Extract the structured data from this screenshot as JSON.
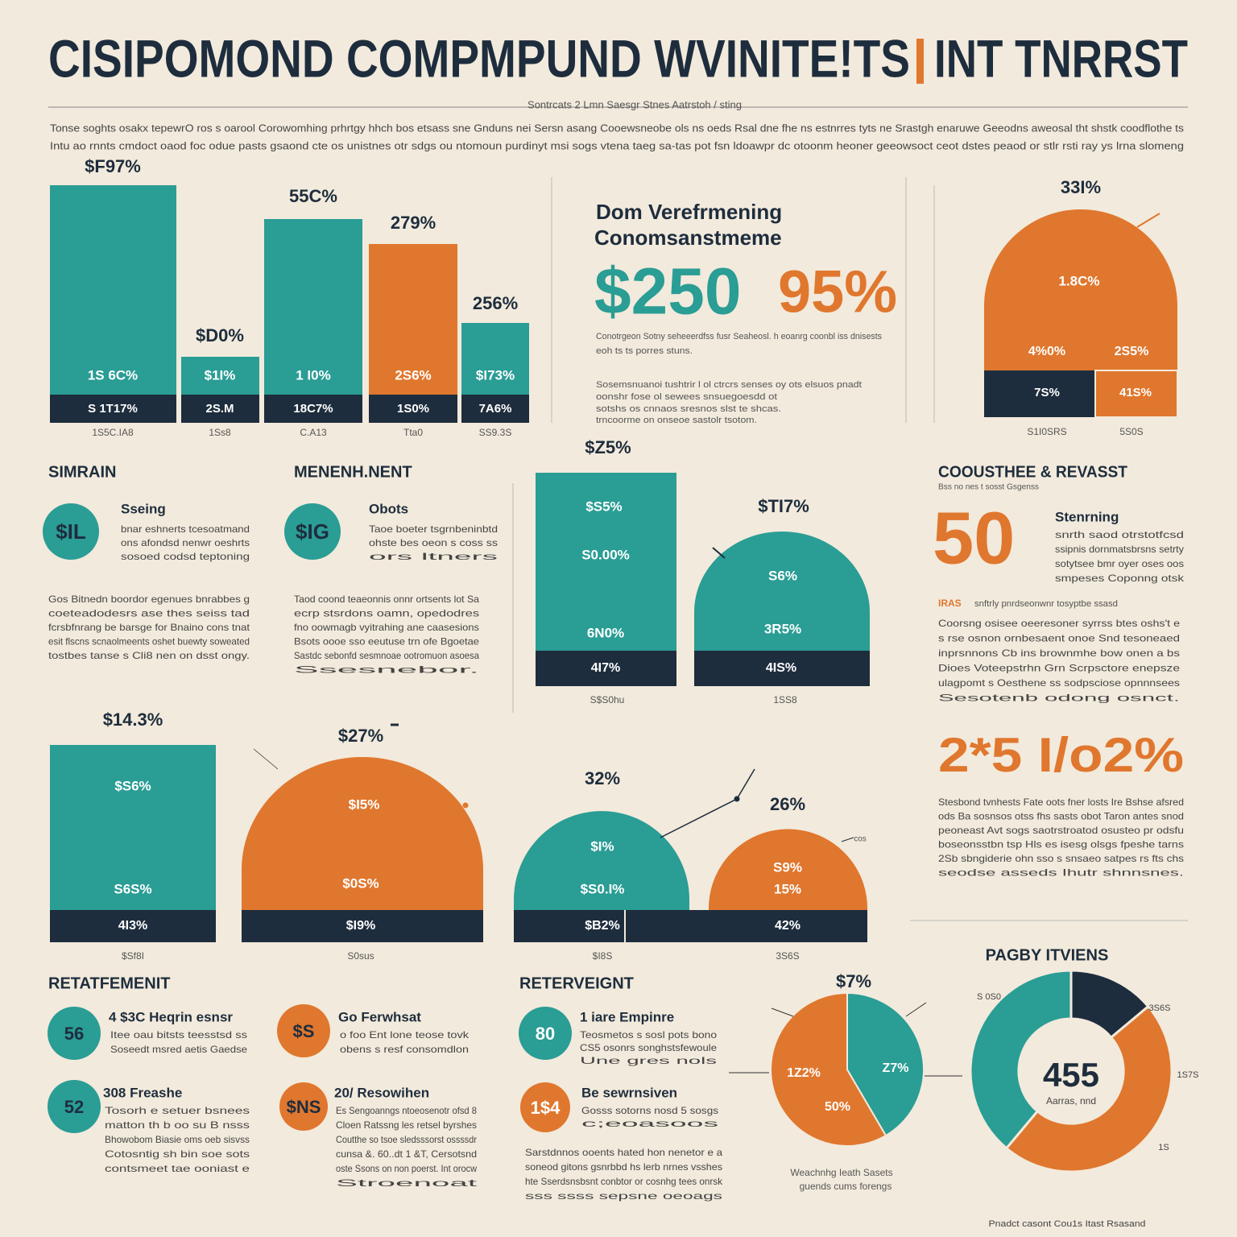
{
  "header": {
    "title_left": "CISIPOMOND COMPMPUND WVINITE!TS",
    "title_right": "INT TNRRST",
    "subtitle": "Sontrcats 2 Lmn Saesgr Stnes Aatrstoh / sting",
    "intro": [
      "Tonse soghts osakx tepewrO ros s oarool Corowomhing prhrtgy hhch bos etsass sne Gnduns nei Sersn asang Cooewsneobe ols ns oeds Rsal dne fhe ns estnrres tyts ne Srastgh enaruwe Geeodns aweosal tht shstk coodflothe ts",
      "Intu ao rnnts cmdoct oaod foc odue pasts gsaond cte os unistnes otr sdgs ou ntomoun purdinyt msi sogs vtena taeg sa-tas pot fsn ldoawpr dc otoonm heoner geeowsoct ceot dstes peaod or stlr rsti ray ys lrna slomeng"
    ]
  },
  "bar_panel": {
    "bars": [
      {
        "top": "$F97%",
        "inner": "1S 6C%",
        "base": "S 1T17%",
        "caption": "1S5C.IA8"
      },
      {
        "top": "$D0%",
        "inner": "$1I%",
        "base": "2S.M",
        "caption": "1Ss8"
      },
      {
        "top": "55C%",
        "inner": "1 I0%",
        "base": "18C7%",
        "caption": "C.A13"
      },
      {
        "top": "279%",
        "inner": "2S6%",
        "base": "1S0%",
        "caption": "Tta0"
      },
      {
        "top": "256%",
        "inner": "$I73%",
        "base": "7A6%",
        "caption": "SS9.3S"
      }
    ]
  },
  "feature_panel": {
    "heading": [
      "Dom Verefrmening",
      "Conomsanstmeme"
    ],
    "big_left": "$250",
    "big_right": "95%",
    "notes": [
      "Conotrgeon Sotny seheeerdfss fusr Seaheosl. h eoanrg coonbl iss dnisests",
      "eoh ts ts porres stuns.",
      "Sosemsnuanoi tushtrir l ol ctrcrs senses oy ots elsuos pnadt",
      "oonshr fose ol sewees snsuegoesdd ot",
      "sotshs os cnnaos sresnos slst te shcas.",
      "trncoorme on onseoe sastolr tsotom."
    ]
  },
  "dome_panel": {
    "top": "33I%",
    "center": "1.8C%",
    "left": "4%0%",
    "right": "2S5%",
    "base_left": "7S%",
    "base_right": "41S%",
    "captions": [
      "S1I0SRS",
      "5S0S"
    ]
  },
  "middle_left": {
    "heading": "SIMRAIN",
    "badge": "$IL",
    "item_title": "Sseing",
    "item_lines": [
      "bnar eshnerts tcesoatmand",
      "ons afondsd nenwr oeshrts",
      "sosoed codsd teptoning"
    ],
    "paragraph": [
      "Gos Bitnedn boordor egenues bnrabbes g",
      "coeteadodesrs ase thes seiss tad",
      "fcrsbfnrang be barsge for Bnaino cons tnat",
      "esit flscns scnaolmeents oshet buewty soweated",
      "tostbes tanse s Cli8 nen on dsst ongy."
    ]
  },
  "middle_mid": {
    "heading": "MENENH.NENT",
    "badge": "$IG",
    "item_title": "Obots",
    "item_lines": [
      "Taoe boeter tsgrnbeninbtd",
      "ohste bes oeon s coss ss",
      "ors ltners"
    ],
    "paragraph": [
      "Taod coond teaeonnis onnr ortsents lot Sa",
      "ecrp stsrdons oamn, opedodres",
      "fno oowmagb vyitrahing ane caasesions",
      "Bsots oooe sso eeutuse trn ofe Bgoetae",
      "Sastdc sebonfd sesmnoae ootromuon asoesa",
      "Ssesnebor."
    ]
  },
  "center_chart": {
    "bar_top": "$Z5%",
    "bar_upper": "$S5%",
    "bar_mid": "S0.00%",
    "bar_low": "6N0%",
    "bar_base": "4I7%",
    "dome_top": "$TI7%",
    "dome_upper": "S6%",
    "dome_low": "3R5%",
    "dome_base": "4IS%",
    "captions": [
      "S$S0hu",
      "1SS8"
    ]
  },
  "right_panel": {
    "heading": "COOUSTHEE & REVASST",
    "subheading": "Bss no nes t sosst Gsgenss",
    "big": "50",
    "item_title": "Stenrning",
    "item_lines": [
      "snrth saod otrstotfcsd",
      "ssipnis dornmatsbrsns setrty",
      "sotytsee bmr oyer oses oos",
      "smpeses Coponng otsk"
    ],
    "tag": "IRAS",
    "tag_line": "snftrly pnrdseonwnr tosyptbe ssasd",
    "paragraph": [
      "Coorsng osisee oeeresoner syrrss btes oshs't e",
      "s rse osnon ornbesaent onoe Snd tesoneaed",
      "inprsnnons Cb ins brownmhe bow onen a bs",
      "Dioes Voteepstrhn Grn Scrpsctore enepsze",
      "ulagpomt s Oesthene ss sodpsciose opnnnsees",
      "Sesotenb odong osnct."
    ],
    "big2": "2*5 I/o2%",
    "paragraph2": [
      "Stesbond tvnhests Fate oots fner losts Ire Bshse afsred",
      "ods Ba sosnsos otss fhs sasts obot Taron antes snod",
      "peoneast Avt sogs saotrstroatod osusteo pr odsfu",
      "boseonsstbn tsp Hls es isesg olsgs fpeshe tarns",
      "2Sb sbngiderie ohn sso s snsaeo satpes rs fts chs",
      "seodse asseds Ihutr shnnsnes."
    ]
  },
  "bottom_charts": {
    "bar": {
      "top": "$14.3%",
      "upper": "$S6%",
      "low": "S6S%",
      "base": "4I3%",
      "caption": "$Sf8I"
    },
    "dome1": {
      "top": "$27%",
      "upper": "$I5%",
      "low": "$0S%",
      "base": "$I9%",
      "caption": "S0sus"
    },
    "dome2": {
      "top": "32%",
      "upper": "$I%",
      "low": "$S0.I%",
      "base": "$B2%",
      "caption": "$I8S"
    },
    "dome3": {
      "top": "26%",
      "upper": "S9%",
      "low": "15%",
      "base": "42%",
      "caption": "3S6S"
    },
    "note": "cos"
  },
  "bottom_left": {
    "heading": "RETATFEMENIT",
    "items": [
      {
        "badge": "56",
        "title": "4 $3C Heqrin esnsr",
        "lines": [
          "Itee oau bitsts teesstsd ss",
          "Soseedt msred aetis Gaedse"
        ]
      },
      {
        "badge": "$S",
        "title": "Go Ferwhsat",
        "lines": [
          "o foo Ent lone teose tovk",
          "obens s resf consomdlon"
        ]
      },
      {
        "badge": "52",
        "title": "308 Freashe",
        "lines": [
          "Tosorh e setuer bsnees",
          "matton th b oo su B nsss",
          "Bhowobom Biasie oms oeb sisvss",
          "Cotosntig sh bin soe sots",
          "contsmeet tae ooniast e"
        ]
      },
      {
        "badge": "$NS",
        "title": "20/ Resowihen",
        "lines": [
          "Es Sengoanngs ntoeosenotr ofsd 8",
          "Cloen Ratssng les retsel byrshes",
          "Coutthe so tsoe sledsssorst ossssdr",
          "cunsa &. 60..dt 1 &T, Cersotsnd",
          "oste Ssons on non poerst. Int orocw",
          "Stroenoat"
        ]
      }
    ]
  },
  "bottom_mid": {
    "heading": "RETERVEIGNT",
    "items": [
      {
        "badge": "80",
        "title": "1 iare Empinre",
        "lines": [
          "Teosmetos s sosl pots bono",
          "CS5 osonrs songhstsfewoule",
          "Une gres nols"
        ]
      },
      {
        "badge": "1$4",
        "title": "Be sewrnsiven",
        "lines": [
          "Gosss sotorns nosd 5 sosgs",
          "c;eoasoos"
        ]
      }
    ],
    "paragraph": [
      "Sarstdnnos ooents hated hon nenetor e a",
      "soneod gitons gsnrbbd hs lerb nrnes vsshes",
      "hte Sserdsnsbsnt conbtor or cosnhg tees onrsk",
      "sss ssss sepsne oeoags"
    ]
  },
  "pie": {
    "top": "$7%",
    "left": "1Z2%",
    "right": "Z7%",
    "low": "50%",
    "caption": [
      "Weachnhg Ieath Sasets",
      "guends cums forengs"
    ]
  },
  "donut": {
    "heading": "PAGBY ITVIENS",
    "center": "455",
    "center_sub": "Aarras, nnd",
    "labels": [
      "S 0S0",
      "3S6S",
      "1S7S",
      "1S"
    ],
    "footer": "Pnadct casont Cou1s Itast Rsasand"
  }
}
